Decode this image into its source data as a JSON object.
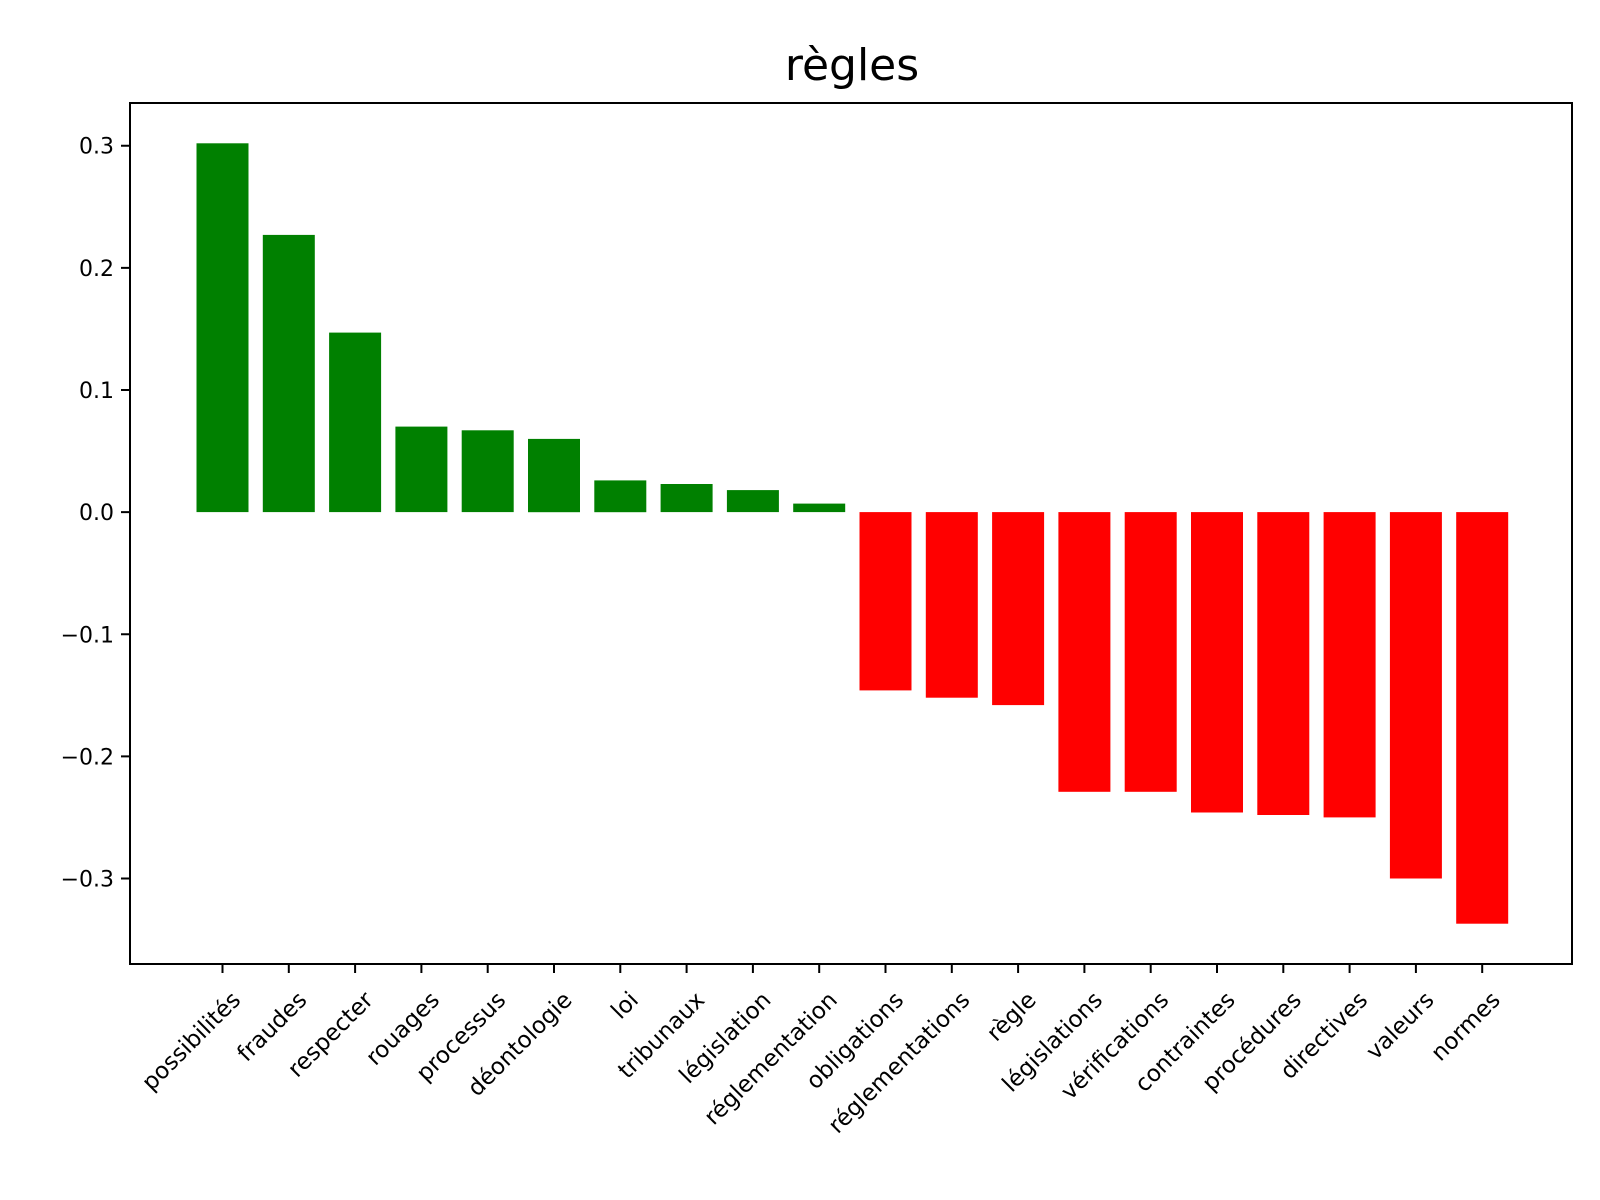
{
  "chart_data": {
    "type": "bar",
    "title": "règles",
    "xlabel": "",
    "ylabel": "",
    "ylim": [
      -0.37,
      0.335
    ],
    "yticks": [
      0.3,
      0.2,
      0.1,
      0.0,
      -0.1,
      -0.2,
      -0.3
    ],
    "ytick_labels": [
      "0.3",
      "0.2",
      "0.1",
      "0.0",
      "−0.1",
      "−0.2",
      "−0.3"
    ],
    "grid": false,
    "positive_color": "#008000",
    "negative_color": "#ff0000",
    "categories": [
      "possibilités",
      "fraudes",
      "respecter",
      "rouages",
      "processus",
      "déontologie",
      "loi",
      "tribunaux",
      "législation",
      "réglementation",
      "obligations",
      "réglementations",
      "règle",
      "législations",
      "vérifications",
      "contraintes",
      "procédures",
      "directives",
      "valeurs",
      "normes"
    ],
    "values": [
      0.302,
      0.227,
      0.147,
      0.07,
      0.067,
      0.06,
      0.026,
      0.023,
      0.018,
      0.007,
      -0.146,
      -0.152,
      -0.158,
      -0.229,
      -0.229,
      -0.246,
      -0.248,
      -0.25,
      -0.3,
      -0.337
    ]
  }
}
